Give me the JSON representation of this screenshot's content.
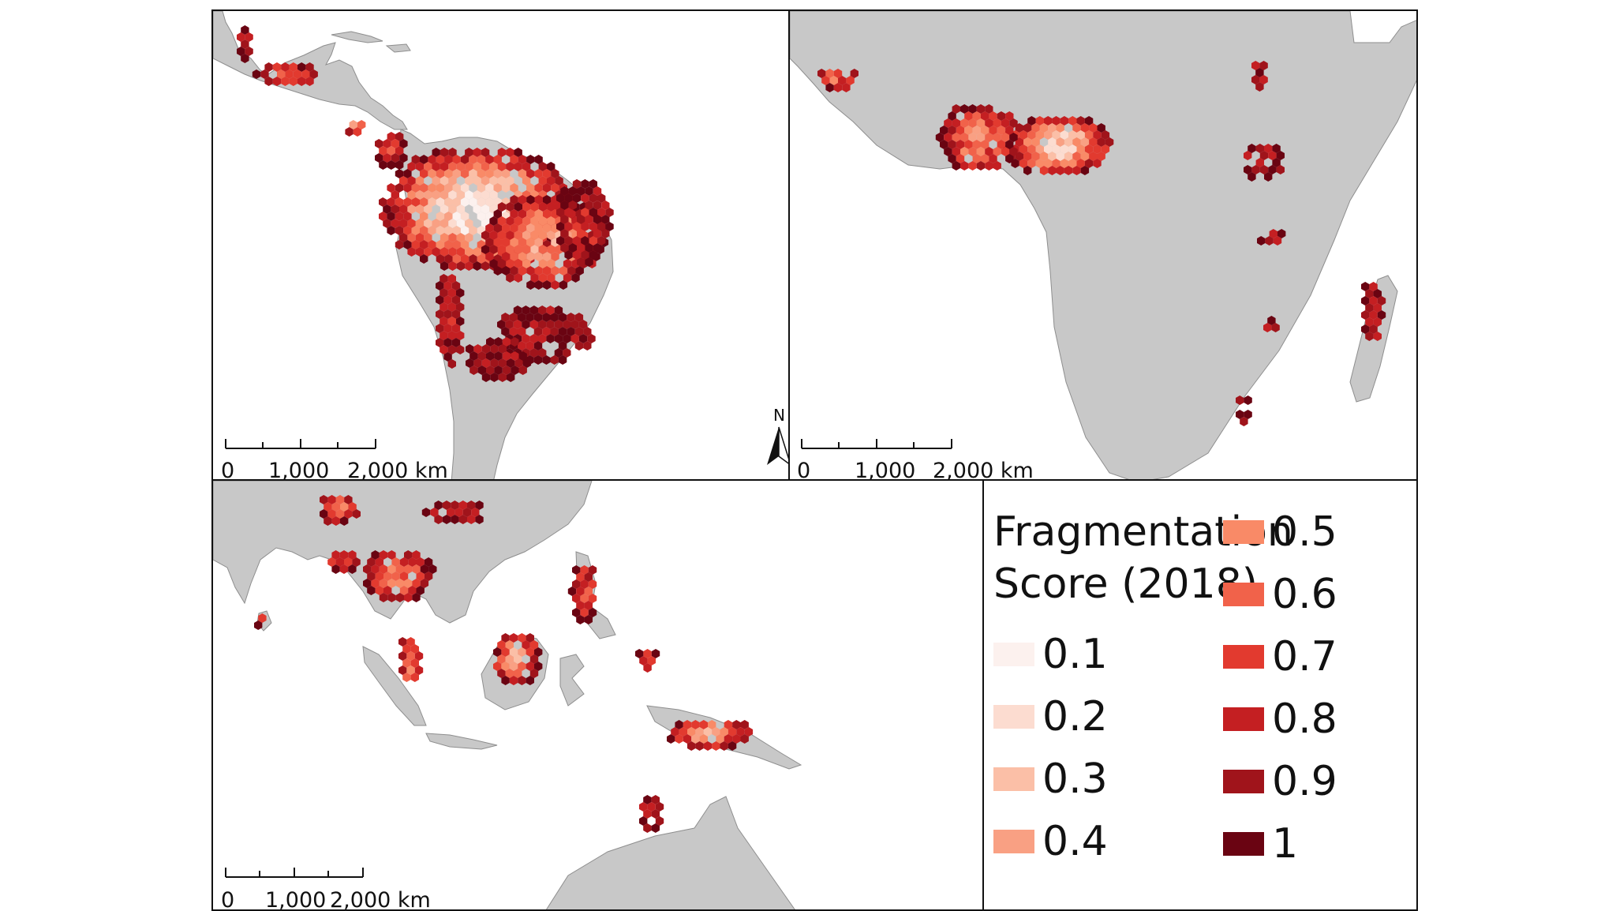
{
  "scale_bar": {
    "ticks": [
      "0",
      "1,000",
      "2,000 km"
    ]
  },
  "north_arrow": {
    "label": "N"
  },
  "legend": {
    "title": "Fragmentation\nScore (2018)",
    "items": [
      {
        "label": "0.1",
        "color": "#fcf1ee"
      },
      {
        "label": "0.2",
        "color": "#fcdcd0"
      },
      {
        "label": "0.3",
        "color": "#fbbfa7"
      },
      {
        "label": "0.4",
        "color": "#f9a083"
      },
      {
        "label": "0.5",
        "color": "#f98a67"
      },
      {
        "label": "0.6",
        "color": "#f1624a"
      },
      {
        "label": "0.7",
        "color": "#e23a2f"
      },
      {
        "label": "0.8",
        "color": "#c41f22"
      },
      {
        "label": "0.9",
        "color": "#a0141b"
      },
      {
        "label": "1",
        "color": "#6a0412"
      }
    ]
  },
  "colors": {
    "land": "#c8c8c8",
    "coast": "#8e8e8e",
    "ocean": "#ffffff"
  }
}
